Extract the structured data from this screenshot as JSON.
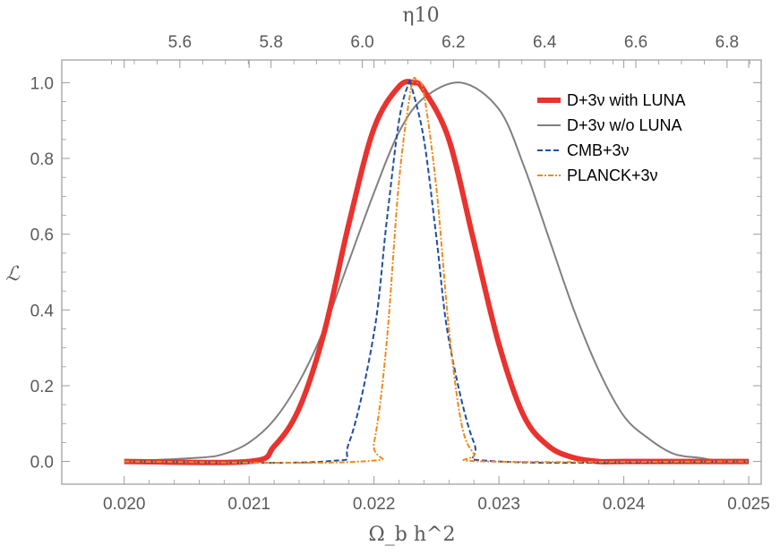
{
  "chart_data": {
    "type": "line",
    "xlabel": "Ω_b h^2",
    "ylabel": "ℒ",
    "top_xlabel": "η10",
    "xlim": [
      0.0195,
      0.0251
    ],
    "ylim": [
      -0.06,
      1.06
    ],
    "top_axis_ticks": [
      "5.6",
      "5.8",
      "6.0",
      "6.2",
      "6.4",
      "6.6",
      "6.8"
    ],
    "top_axis_tick_values": [
      5.6,
      5.8,
      6.0,
      6.2,
      6.4,
      6.6,
      6.8
    ],
    "bottom_axis_ticks": [
      "0.020",
      "0.021",
      "0.022",
      "0.023",
      "0.024",
      "0.025"
    ],
    "bottom_axis_tick_values": [
      0.02,
      0.021,
      0.022,
      0.023,
      0.024,
      0.025
    ],
    "y_axis_ticks": [
      "0.0",
      "0.2",
      "0.4",
      "0.6",
      "0.8",
      "1.0"
    ],
    "y_axis_tick_values": [
      0.0,
      0.2,
      0.4,
      0.6,
      0.8,
      1.0
    ],
    "legend_position": "top-right",
    "grid": false,
    "series": [
      {
        "name": "D+3ν  with LUNA",
        "color": "#e8332e",
        "style": "solid-thick",
        "x": [
          0.02,
          0.021,
          0.0212,
          0.0214,
          0.0216,
          0.0218,
          0.022,
          0.0222,
          0.02232,
          0.0224,
          0.0226,
          0.0228,
          0.023,
          0.0232,
          0.0234,
          0.0236,
          0.0238,
          0.024,
          0.025
        ],
        "y": [
          0.0,
          0.0,
          0.04,
          0.14,
          0.34,
          0.63,
          0.88,
          0.99,
          1.0,
          0.98,
          0.85,
          0.58,
          0.31,
          0.12,
          0.04,
          0.01,
          0.0,
          0.0,
          0.0
        ]
      },
      {
        "name": "D+3ν  w/o LUNA",
        "color": "#808080",
        "style": "solid",
        "x": [
          0.02,
          0.0206,
          0.0208,
          0.021,
          0.0212,
          0.0214,
          0.0216,
          0.0218,
          0.022,
          0.0222,
          0.0224,
          0.0227,
          0.023,
          0.0232,
          0.0234,
          0.0236,
          0.0238,
          0.024,
          0.0242,
          0.0244,
          0.0246,
          0.0248,
          0.025
        ],
        "y": [
          0.0,
          0.01,
          0.02,
          0.05,
          0.11,
          0.21,
          0.35,
          0.53,
          0.71,
          0.87,
          0.96,
          1.0,
          0.93,
          0.78,
          0.59,
          0.4,
          0.24,
          0.12,
          0.06,
          0.02,
          0.01,
          0.0,
          0.0
        ]
      },
      {
        "name": "CMB+3ν",
        "color": "#1f4fa0",
        "style": "dashed",
        "x": [
          0.02,
          0.0216,
          0.0218,
          0.022,
          0.0221,
          0.0222,
          0.02228,
          0.0223,
          0.0224,
          0.0225,
          0.0226,
          0.0228,
          0.023,
          0.025
        ],
        "y": [
          0.0,
          0.0,
          0.05,
          0.34,
          0.63,
          0.9,
          1.0,
          0.99,
          0.85,
          0.59,
          0.32,
          0.05,
          0.0,
          0.0
        ]
      },
      {
        "name": "PLANCK+3ν",
        "color": "#ee8a1e",
        "style": "dash-dot",
        "x": [
          0.02,
          0.0219,
          0.022,
          0.0221,
          0.0222,
          0.0223,
          0.02235,
          0.0224,
          0.0225,
          0.0226,
          0.0227,
          0.0228,
          0.0229,
          0.025
        ],
        "y": [
          0.0,
          0.0,
          0.05,
          0.31,
          0.74,
          0.99,
          1.0,
          0.97,
          0.72,
          0.35,
          0.1,
          0.02,
          0.0,
          0.0
        ]
      }
    ]
  }
}
